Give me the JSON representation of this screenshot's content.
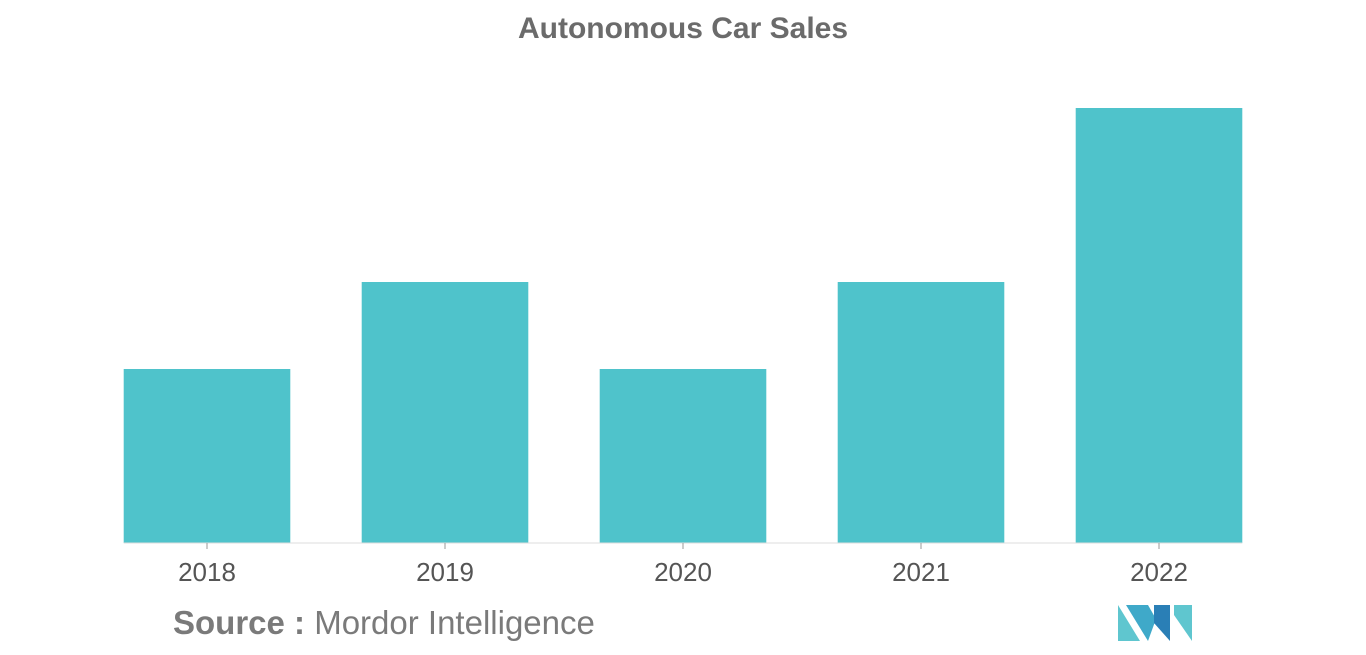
{
  "chart_data": {
    "type": "bar",
    "title": "Autonomous Car Sales",
    "categories": [
      "2018",
      "2019",
      "2020",
      "2021",
      "2022"
    ],
    "values": [
      2,
      3,
      2,
      3,
      5
    ],
    "ylim": [
      0,
      5
    ],
    "xlabel": "",
    "ylabel": "",
    "grid": false,
    "bar_color": "#4fc3cb"
  },
  "source": {
    "label": "Source :",
    "value": "Mordor Intelligence"
  },
  "logo": {
    "icon": "mordor-intelligence-logo-icon",
    "colors": [
      "#5fc6cf",
      "#2a7fb6"
    ]
  }
}
